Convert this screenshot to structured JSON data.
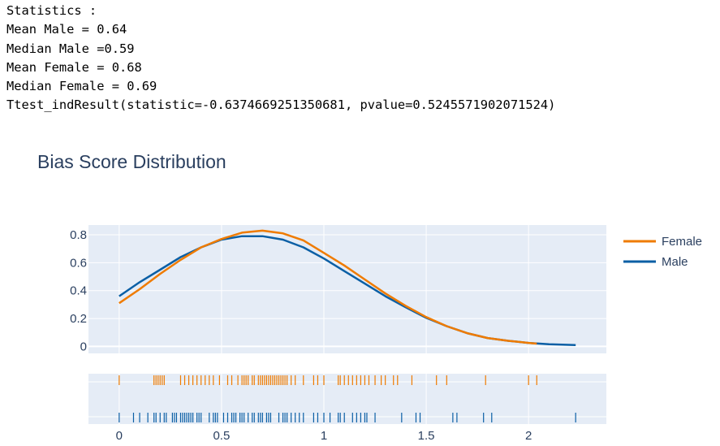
{
  "stats": {
    "heading": "Statistics :",
    "lines": [
      "Mean Male = 0.64",
      "Median Male =0.59",
      "Mean Female = 0.68",
      "Median Female = 0.69",
      "Ttest_indResult(statistic=-0.6374669251350681, pvalue=0.5245571902071524)"
    ]
  },
  "chart_data": {
    "type": "line",
    "title": "Bias Score Distribution",
    "xlabel": "",
    "ylabel": "",
    "xlim": [
      -0.15,
      2.38
    ],
    "ylim": [
      -0.05,
      0.87
    ],
    "x_ticks": [
      "0",
      "0.5",
      "1",
      "1.5",
      "2"
    ],
    "y_ticks": [
      "0",
      "0.2",
      "0.4",
      "0.6",
      "0.8"
    ],
    "grid": true,
    "legend": "top-right",
    "colors": {
      "Female": "#ef7b00",
      "Male": "#0b5fa5",
      "plot_bg": "#e5ecf6",
      "grid": "#ffffff"
    },
    "series": [
      {
        "name": "Female",
        "x": [
          0,
          0.1,
          0.2,
          0.3,
          0.4,
          0.5,
          0.6,
          0.7,
          0.8,
          0.9,
          1.0,
          1.1,
          1.2,
          1.3,
          1.4,
          1.5,
          1.6,
          1.7,
          1.8,
          1.9,
          2.0,
          2.04
        ],
        "y": [
          0.31,
          0.41,
          0.52,
          0.62,
          0.71,
          0.77,
          0.815,
          0.83,
          0.81,
          0.76,
          0.67,
          0.58,
          0.48,
          0.38,
          0.29,
          0.21,
          0.145,
          0.095,
          0.06,
          0.04,
          0.025,
          0.02
        ]
      },
      {
        "name": "Male",
        "x": [
          0,
          0.1,
          0.2,
          0.3,
          0.4,
          0.5,
          0.6,
          0.7,
          0.8,
          0.9,
          1.0,
          1.1,
          1.2,
          1.3,
          1.4,
          1.5,
          1.6,
          1.7,
          1.8,
          1.9,
          2.0,
          2.1,
          2.23
        ],
        "y": [
          0.36,
          0.46,
          0.55,
          0.64,
          0.71,
          0.765,
          0.79,
          0.79,
          0.765,
          0.71,
          0.63,
          0.54,
          0.45,
          0.36,
          0.28,
          0.205,
          0.145,
          0.095,
          0.06,
          0.04,
          0.025,
          0.015,
          0.01
        ]
      }
    ],
    "rug": {
      "Female": [
        0.0,
        0.17,
        0.18,
        0.19,
        0.2,
        0.21,
        0.22,
        0.3,
        0.32,
        0.34,
        0.36,
        0.38,
        0.4,
        0.42,
        0.44,
        0.46,
        0.49,
        0.53,
        0.55,
        0.58,
        0.6,
        0.61,
        0.62,
        0.63,
        0.65,
        0.66,
        0.68,
        0.69,
        0.7,
        0.71,
        0.72,
        0.73,
        0.74,
        0.75,
        0.76,
        0.77,
        0.78,
        0.79,
        0.8,
        0.81,
        0.82,
        0.84,
        0.86,
        0.9,
        0.95,
        0.97,
        1.0,
        1.07,
        1.08,
        1.1,
        1.12,
        1.14,
        1.16,
        1.18,
        1.2,
        1.22,
        1.25,
        1.28,
        1.3,
        1.34,
        1.36,
        1.43,
        1.55,
        1.6,
        1.79,
        2.0,
        2.04
      ],
      "Male": [
        0.0,
        0.07,
        0.1,
        0.14,
        0.17,
        0.18,
        0.2,
        0.22,
        0.23,
        0.26,
        0.27,
        0.28,
        0.3,
        0.31,
        0.32,
        0.33,
        0.34,
        0.35,
        0.36,
        0.38,
        0.39,
        0.4,
        0.44,
        0.46,
        0.47,
        0.48,
        0.51,
        0.53,
        0.55,
        0.56,
        0.57,
        0.59,
        0.6,
        0.61,
        0.63,
        0.65,
        0.66,
        0.68,
        0.69,
        0.7,
        0.72,
        0.73,
        0.74,
        0.78,
        0.8,
        0.81,
        0.82,
        0.84,
        0.86,
        0.88,
        0.9,
        0.95,
        0.97,
        1.0,
        1.03,
        1.07,
        1.08,
        1.1,
        1.14,
        1.16,
        1.18,
        1.2,
        1.21,
        1.25,
        1.38,
        1.45,
        1.47,
        1.63,
        1.65,
        1.78,
        1.82,
        2.23
      ]
    }
  }
}
